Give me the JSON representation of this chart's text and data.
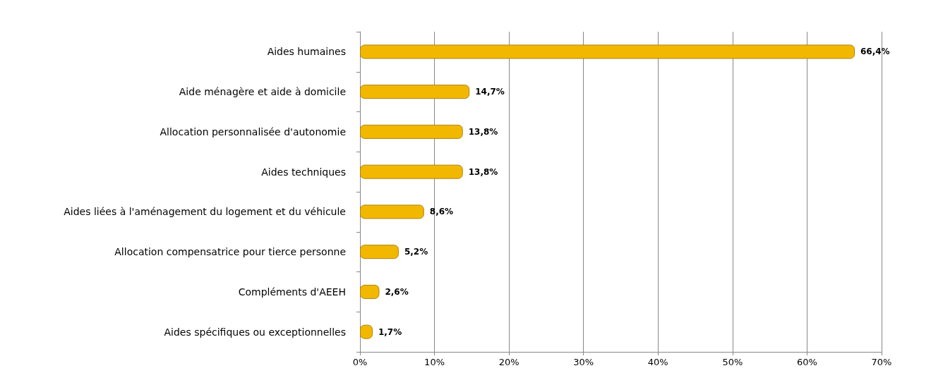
{
  "chart_data": {
    "type": "bar",
    "orientation": "horizontal",
    "categories": [
      "Aides humaines",
      "Aide ménagère et aide à domicile",
      "Allocation personnalisée d'autonomie",
      "Aides techniques",
      "Aides liées à l'aménagement du logement et du véhicule",
      "Allocation compensatrice pour tierce personne",
      "Compléments d'AEEH",
      "Aides spécifiques ou exceptionnelles"
    ],
    "values": [
      66.4,
      14.7,
      13.8,
      13.8,
      8.6,
      5.2,
      2.6,
      1.7
    ],
    "value_labels": [
      "66,4%",
      "14,7%",
      "13,8%",
      "13,8%",
      "8,6%",
      "5,2%",
      "2,6%",
      "1,7%"
    ],
    "color": "#f2b800",
    "xlim": [
      0,
      70
    ],
    "xticks": [
      {
        "value": 0,
        "label": "0%"
      },
      {
        "value": 10,
        "label": "10%"
      },
      {
        "value": 20,
        "label": "20%"
      },
      {
        "value": 30,
        "label": "30%"
      },
      {
        "value": 40,
        "label": "40%"
      },
      {
        "value": 50,
        "label": "50%"
      },
      {
        "value": 60,
        "label": "60%"
      },
      {
        "value": 70,
        "label": "70%"
      }
    ],
    "grid": "x"
  }
}
